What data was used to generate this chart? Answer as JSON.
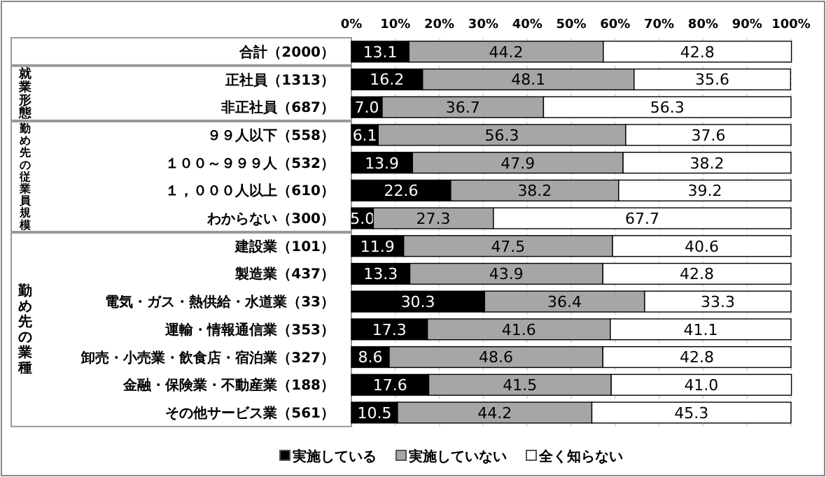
{
  "chart_data": {
    "type": "bar",
    "orientation": "horizontal",
    "stacked": true,
    "categories": [
      "合計（2000）",
      "正社員（1313）",
      "非正社員（687）",
      "９９人以下（558）",
      "１００～９９９人（532）",
      "１，０００人以上（610）",
      "わからない（300）",
      "建設業（101）",
      "製造業（437）",
      "電気・ガス・熱供給・水道業（33）",
      "運輸・情報通信業（353）",
      "卸売・小売業・飲食店・宿泊業（327）",
      "金融・保険業・不動産業（188）",
      "その他サービス業（561）"
    ],
    "series": [
      {
        "name": "実施している",
        "color": "#000000",
        "values": [
          13.1,
          16.2,
          7.0,
          6.1,
          13.9,
          22.6,
          5.0,
          11.9,
          13.3,
          30.3,
          17.3,
          8.6,
          17.6,
          10.5
        ],
        "value_labels": [
          "13.1",
          "16.2",
          "7.0",
          "6.1",
          "13.9",
          "22.6",
          "5.0",
          "11.9",
          "13.3",
          "30.3",
          "17.3",
          "8.6",
          "17.6",
          "10.5"
        ]
      },
      {
        "name": "実施していない",
        "color": "#a6a6a6",
        "values": [
          44.2,
          48.1,
          36.7,
          56.3,
          47.9,
          38.2,
          27.3,
          47.5,
          43.9,
          36.4,
          41.6,
          48.6,
          41.5,
          44.2
        ],
        "value_labels": [
          "44.2",
          "48.1",
          "36.7",
          "56.3",
          "47.9",
          "38.2",
          "27.3",
          "47.5",
          "43.9",
          "36.4",
          "41.6",
          "48.6",
          "41.5",
          "44.2"
        ]
      },
      {
        "name": "全く知らない",
        "color": "#ffffff",
        "values": [
          42.8,
          35.6,
          56.3,
          37.6,
          38.2,
          39.2,
          67.7,
          40.6,
          42.8,
          33.3,
          41.1,
          42.8,
          41.0,
          45.3
        ],
        "value_labels": [
          "42.8",
          "35.6",
          "56.3",
          "37.6",
          "38.2",
          "39.2",
          "67.7",
          "40.6",
          "42.8",
          "33.3",
          "41.1",
          "42.8",
          "41.0",
          "45.3"
        ]
      }
    ],
    "xlim": [
      0,
      100
    ],
    "xticks": [
      {
        "value": 0,
        "label": "0%"
      },
      {
        "value": 10,
        "label": "10%"
      },
      {
        "value": 20,
        "label": "20%"
      },
      {
        "value": 30,
        "label": "30%"
      },
      {
        "value": 40,
        "label": "40%"
      },
      {
        "value": 50,
        "label": "50%"
      },
      {
        "value": 60,
        "label": "60%"
      },
      {
        "value": 70,
        "label": "70%"
      },
      {
        "value": 80,
        "label": "80%"
      },
      {
        "value": 90,
        "label": "90%"
      },
      {
        "value": 100,
        "label": "100%"
      }
    ],
    "annotations": [
      "就業形態",
      "勤め先の従業員規模",
      "勤め先の業種"
    ],
    "grid": "x",
    "legend": "bottom"
  }
}
